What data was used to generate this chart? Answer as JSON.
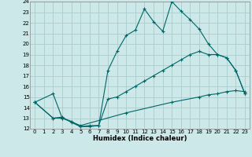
{
  "xlabel": "Humidex (Indice chaleur)",
  "bg_color": "#cce8e8",
  "grid_color": "#aacccc",
  "line_color": "#006666",
  "xlim": [
    -0.5,
    23.5
  ],
  "ylim": [
    12,
    24
  ],
  "xticks": [
    0,
    1,
    2,
    3,
    4,
    5,
    6,
    7,
    8,
    9,
    10,
    11,
    12,
    13,
    14,
    15,
    16,
    17,
    18,
    19,
    20,
    21,
    22,
    23
  ],
  "yticks": [
    12,
    13,
    14,
    15,
    16,
    17,
    18,
    19,
    20,
    21,
    22,
    23,
    24
  ],
  "line1_x": [
    0,
    2,
    3,
    4,
    5,
    6,
    7,
    8,
    9,
    10,
    11,
    12,
    13,
    14,
    15,
    16,
    17,
    18,
    19,
    20,
    21,
    22,
    23
  ],
  "line1_y": [
    14.5,
    15.3,
    13.0,
    12.7,
    12.2,
    12.2,
    12.3,
    17.5,
    19.3,
    20.8,
    21.3,
    23.3,
    22.1,
    21.2,
    24.0,
    23.1,
    22.3,
    21.4,
    20.0,
    19.0,
    18.7,
    17.5,
    15.3
  ],
  "line2_x": [
    0,
    2,
    3,
    4,
    5,
    6,
    7,
    8,
    9,
    10,
    11,
    12,
    13,
    14,
    15,
    16,
    17,
    18,
    19,
    20,
    21,
    22,
    23
  ],
  "line2_y": [
    14.5,
    13.0,
    13.1,
    12.6,
    12.2,
    12.3,
    12.3,
    14.8,
    15.0,
    15.5,
    16.0,
    16.5,
    17.0,
    17.5,
    18.0,
    18.5,
    19.0,
    19.3,
    19.0,
    19.0,
    18.7,
    17.5,
    15.3
  ],
  "line3_x": [
    0,
    2,
    3,
    5,
    10,
    15,
    18,
    19,
    20,
    21,
    22,
    23
  ],
  "line3_y": [
    14.5,
    13.0,
    13.0,
    12.3,
    13.5,
    14.5,
    15.0,
    15.2,
    15.3,
    15.5,
    15.6,
    15.5
  ],
  "tick_fontsize": 5.0,
  "xlabel_fontsize": 6.0,
  "marker_size": 3.5,
  "linewidth": 0.8
}
